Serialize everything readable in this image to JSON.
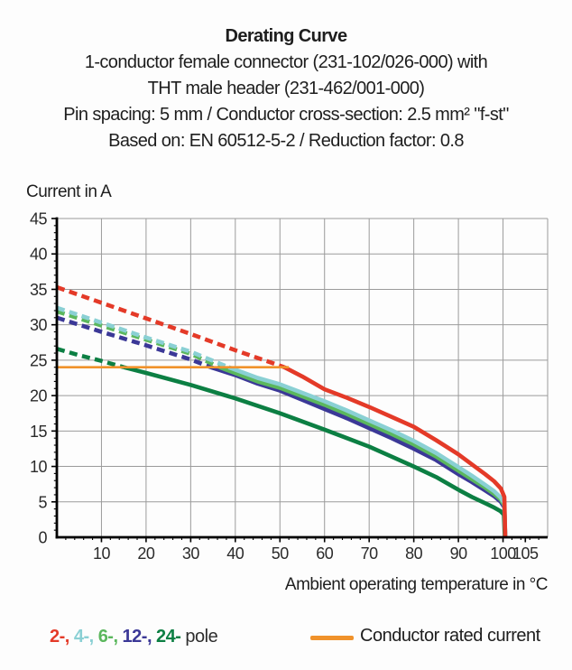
{
  "header": {
    "title": "Derating Curve",
    "subtitle_lines": [
      "1-conductor female connector (231-102/026-000) with",
      "THT male header (231-462/001-000)",
      "Pin spacing: 5 mm / Conductor cross-section: 2.5 mm² \"f-st\"",
      "Based on: EN 60512-5-2 / Reduction factor: 0.8"
    ]
  },
  "chart_data": {
    "type": "line",
    "title": "Derating Curve",
    "ylabel": "Current in A",
    "xlabel": "Ambient operating temperature in °C",
    "xlim": [
      0,
      110
    ],
    "ylim": [
      0,
      45
    ],
    "x_ticks": [
      10,
      20,
      30,
      40,
      50,
      60,
      70,
      80,
      90,
      100,
      105
    ],
    "y_ticks": [
      0,
      5,
      10,
      15,
      20,
      25,
      30,
      35,
      40,
      45
    ],
    "x_minor_step": 2,
    "y_minor_step": 1,
    "grid": true,
    "colors": {
      "grid": "#9b9b9b",
      "axis": "#000000",
      "text": "#2b2b2b"
    },
    "style_note": "curve segments above the conductor rated current (24 A) are dashed, below it solid; all curves plunge to 0 A at ~100.5 °C",
    "rated_current": {
      "label": "Conductor rated current",
      "value": 24,
      "x_start": 0,
      "x_end": 52,
      "color": "#f0922b"
    },
    "series": [
      {
        "name": "2-pole",
        "color": "#e43a28",
        "points": [
          [
            0,
            35.3
          ],
          [
            10,
            33.1
          ],
          [
            20,
            30.9
          ],
          [
            30,
            28.7
          ],
          [
            40,
            26.4
          ],
          [
            46,
            25.1
          ],
          [
            51,
            24
          ],
          [
            55,
            22.7
          ],
          [
            60,
            20.9
          ],
          [
            65,
            19.7
          ],
          [
            70,
            18.4
          ],
          [
            75,
            17.0
          ],
          [
            80,
            15.6
          ],
          [
            85,
            13.7
          ],
          [
            90,
            11.7
          ],
          [
            93,
            10.3
          ],
          [
            96,
            8.9
          ],
          [
            98,
            7.9
          ],
          [
            99.5,
            6.9
          ],
          [
            100.3,
            5.7
          ],
          [
            100.5,
            0
          ]
        ]
      },
      {
        "name": "4-pole",
        "color": "#8ad0d4",
        "points": [
          [
            0,
            32.4
          ],
          [
            10,
            30.3
          ],
          [
            20,
            28.2
          ],
          [
            30,
            26.2
          ],
          [
            38.5,
            24
          ],
          [
            45,
            22.5
          ],
          [
            50,
            21.6
          ],
          [
            55,
            20.4
          ],
          [
            60,
            19.2
          ],
          [
            65,
            17.9
          ],
          [
            70,
            16.5
          ],
          [
            75,
            15.1
          ],
          [
            80,
            13.6
          ],
          [
            85,
            11.9
          ],
          [
            90,
            9.9
          ],
          [
            93,
            8.7
          ],
          [
            96,
            7.4
          ],
          [
            98,
            6.5
          ],
          [
            99.5,
            5.6
          ],
          [
            100.3,
            4.8
          ],
          [
            100.5,
            0
          ]
        ]
      },
      {
        "name": "6-pole",
        "color": "#5bb75d",
        "points": [
          [
            0,
            31.9
          ],
          [
            10,
            29.9
          ],
          [
            20,
            27.9
          ],
          [
            30,
            25.9
          ],
          [
            36.5,
            24
          ],
          [
            45,
            22.0
          ],
          [
            50,
            21.1
          ],
          [
            55,
            19.9
          ],
          [
            60,
            18.7
          ],
          [
            65,
            17.4
          ],
          [
            70,
            16.0
          ],
          [
            75,
            14.6
          ],
          [
            80,
            13.1
          ],
          [
            85,
            11.4
          ],
          [
            90,
            9.4
          ],
          [
            93,
            8.2
          ],
          [
            96,
            7.0
          ],
          [
            98,
            6.1
          ],
          [
            99.5,
            5.3
          ],
          [
            100.3,
            4.5
          ],
          [
            100.5,
            0
          ]
        ]
      },
      {
        "name": "12-pole",
        "color": "#3b3897",
        "points": [
          [
            0,
            31.0
          ],
          [
            10,
            29.0
          ],
          [
            20,
            27.1
          ],
          [
            30,
            25.1
          ],
          [
            34.5,
            24
          ],
          [
            40,
            22.9
          ],
          [
            45,
            21.7
          ],
          [
            50,
            20.7
          ],
          [
            55,
            19.4
          ],
          [
            60,
            18.1
          ],
          [
            65,
            16.8
          ],
          [
            70,
            15.4
          ],
          [
            75,
            14.0
          ],
          [
            80,
            12.5
          ],
          [
            85,
            10.9
          ],
          [
            90,
            8.9
          ],
          [
            93,
            7.8
          ],
          [
            96,
            6.6
          ],
          [
            98,
            5.8
          ],
          [
            99.5,
            5.0
          ],
          [
            100.3,
            4.2
          ],
          [
            100.5,
            0
          ]
        ]
      },
      {
        "name": "24-pole",
        "color": "#0c7f43",
        "points": [
          [
            0,
            26.6
          ],
          [
            5,
            25.7
          ],
          [
            10,
            24.9
          ],
          [
            15,
            24
          ],
          [
            20,
            23.2
          ],
          [
            30,
            21.5
          ],
          [
            40,
            19.6
          ],
          [
            50,
            17.5
          ],
          [
            60,
            15.2
          ],
          [
            70,
            12.8
          ],
          [
            80,
            10.0
          ],
          [
            85,
            8.5
          ],
          [
            90,
            6.7
          ],
          [
            93,
            5.7
          ],
          [
            96,
            4.8
          ],
          [
            98,
            4.2
          ],
          [
            99.4,
            3.7
          ],
          [
            100.2,
            3.2
          ],
          [
            100.4,
            0
          ]
        ]
      }
    ]
  },
  "legend": {
    "pole_items": [
      {
        "label": "2-,",
        "color": "#e43a28"
      },
      {
        "label": "4-,",
        "color": "#8ad0d4"
      },
      {
        "label": "6-,",
        "color": "#5bb75d"
      },
      {
        "label": "12-,",
        "color": "#3b3897"
      },
      {
        "label": "24-",
        "color": "#0c7f43"
      }
    ],
    "pole_suffix": "pole",
    "rated_label": "Conductor rated current"
  }
}
